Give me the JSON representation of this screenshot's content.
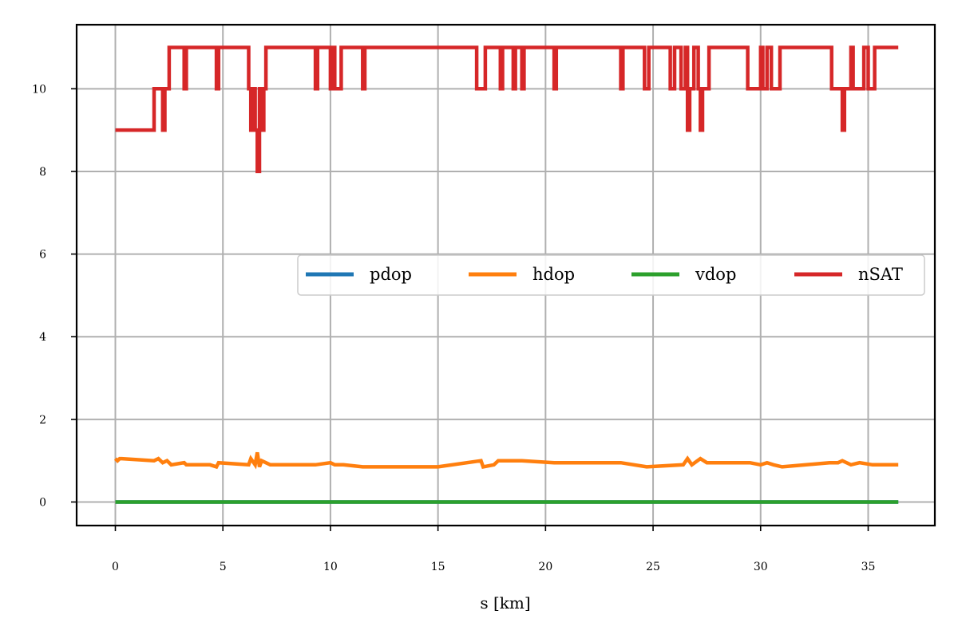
{
  "chart_data": {
    "type": "line",
    "xlabel": "s [km]",
    "ylabel": "",
    "xlim": [
      -1.8,
      38.1
    ],
    "ylim": [
      -0.57,
      11.55
    ],
    "xticks": [
      0,
      5,
      10,
      15,
      20,
      25,
      30,
      35
    ],
    "yticks": [
      0,
      2,
      4,
      6,
      8,
      10
    ],
    "grid": true,
    "legend_position": "center-right",
    "legend_columns": 4,
    "series": [
      {
        "name": "pdop",
        "color": "#1f77b4",
        "x": [
          0,
          36.4
        ],
        "y": [
          0,
          0
        ]
      },
      {
        "name": "hdop",
        "color": "#ff7f0e",
        "x": [
          0,
          0.1,
          0.2,
          0.3,
          1.8,
          2.0,
          2.2,
          2.4,
          2.6,
          3.2,
          3.3,
          4.4,
          4.7,
          4.8,
          6.2,
          6.3,
          6.5,
          6.6,
          6.7,
          6.8,
          7.0,
          7.2,
          9.3,
          10.0,
          10.2,
          10.6,
          11.5,
          12.5,
          15.0,
          17.0,
          17.1,
          17.6,
          17.8,
          18.5,
          18.9,
          20.4,
          23.5,
          24.7,
          26.4,
          26.6,
          26.8,
          27.2,
          27.5,
          29.5,
          30.0,
          30.3,
          30.6,
          31.0,
          33.2,
          33.6,
          33.8,
          34.2,
          34.6,
          35.2,
          36.4
        ],
        "y": [
          1.05,
          1.0,
          1.05,
          1.05,
          1.0,
          1.05,
          0.95,
          1.0,
          0.9,
          0.95,
          0.9,
          0.9,
          0.85,
          0.95,
          0.9,
          1.05,
          0.9,
          1.2,
          0.85,
          1.0,
          0.95,
          0.9,
          0.9,
          0.95,
          0.9,
          0.9,
          0.85,
          0.85,
          0.85,
          1.0,
          0.85,
          0.9,
          1.0,
          1.0,
          1.0,
          0.95,
          0.95,
          0.85,
          0.9,
          1.05,
          0.9,
          1.05,
          0.95,
          0.95,
          0.9,
          0.95,
          0.9,
          0.85,
          0.95,
          0.95,
          1.0,
          0.9,
          0.95,
          0.9,
          0.9
        ]
      },
      {
        "name": "vdop",
        "color": "#2ca02c",
        "x": [
          0,
          36.4
        ],
        "y": [
          0,
          0
        ]
      },
      {
        "name": "nSAT",
        "color": "#d62728",
        "x": [
          0,
          1.8,
          1.8,
          2.2,
          2.2,
          2.3,
          2.3,
          2.5,
          2.5,
          3.2,
          3.2,
          3.3,
          3.3,
          4.7,
          4.7,
          4.8,
          4.8,
          6.2,
          6.2,
          6.3,
          6.3,
          6.4,
          6.4,
          6.5,
          6.5,
          6.6,
          6.6,
          6.7,
          6.7,
          6.8,
          6.8,
          6.9,
          6.9,
          7.0,
          7.0,
          7.2,
          7.2,
          9.3,
          9.3,
          9.4,
          9.4,
          10.0,
          10.0,
          10.1,
          10.1,
          10.2,
          10.2,
          10.5,
          10.5,
          10.7,
          10.7,
          11.5,
          11.5,
          11.6,
          11.6,
          16.8,
          16.8,
          17.2,
          17.2,
          17.9,
          17.9,
          18.0,
          18.0,
          18.5,
          18.5,
          18.6,
          18.6,
          18.9,
          18.9,
          19.0,
          19.0,
          20.4,
          20.4,
          20.5,
          20.5,
          23.5,
          23.5,
          23.6,
          23.6,
          24.6,
          24.6,
          24.8,
          24.8,
          25.8,
          25.8,
          26.0,
          26.0,
          26.3,
          26.3,
          26.5,
          26.5,
          26.6,
          26.6,
          26.7,
          26.7,
          26.9,
          26.9,
          27.1,
          27.1,
          27.2,
          27.2,
          27.3,
          27.3,
          27.6,
          27.6,
          29.4,
          29.4,
          30.0,
          30.0,
          30.1,
          30.1,
          30.3,
          30.3,
          30.5,
          30.5,
          30.9,
          30.9,
          33.3,
          33.3,
          33.8,
          33.8,
          33.9,
          33.9,
          34.2,
          34.2,
          34.3,
          34.3,
          34.8,
          34.8,
          35.0,
          35.0,
          35.3,
          35.3,
          36.4
        ],
        "y": [
          9,
          9,
          10,
          10,
          9,
          9,
          10,
          10,
          11,
          11,
          10,
          10,
          11,
          11,
          10,
          10,
          11,
          11,
          10,
          10,
          9,
          9,
          10,
          10,
          9,
          9,
          8,
          8,
          10,
          10,
          9,
          9,
          10,
          10,
          11,
          11,
          11,
          11,
          10,
          10,
          11,
          11,
          10,
          10,
          11,
          11,
          10,
          10,
          11,
          11,
          11,
          11,
          10,
          10,
          11,
          11,
          10,
          10,
          11,
          11,
          10,
          10,
          11,
          11,
          10,
          10,
          11,
          11,
          10,
          10,
          11,
          11,
          10,
          10,
          11,
          11,
          10,
          10,
          11,
          11,
          10,
          10,
          11,
          11,
          10,
          10,
          11,
          11,
          10,
          10,
          11,
          11,
          9,
          9,
          10,
          10,
          11,
          11,
          10,
          10,
          9,
          9,
          10,
          10,
          11,
          11,
          10,
          10,
          11,
          11,
          10,
          10,
          11,
          11,
          10,
          10,
          11,
          11,
          10,
          10,
          9,
          9,
          10,
          10,
          11,
          11,
          10,
          10,
          11,
          11,
          10,
          10,
          11,
          11
        ]
      }
    ]
  }
}
